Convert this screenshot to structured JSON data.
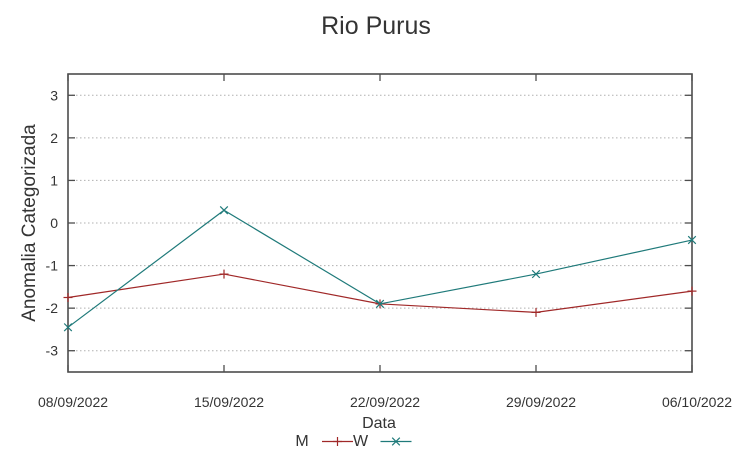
{
  "chart_data": {
    "type": "line",
    "title": "Rio Purus",
    "xlabel": "Data",
    "ylabel": "Anomalia Categorizada",
    "categories": [
      "08/09/2022",
      "15/09/2022",
      "22/09/2022",
      "29/09/2022",
      "06/10/2022"
    ],
    "series": [
      {
        "name": "M",
        "color": "#a02828",
        "marker": "plus",
        "values": [
          -1.75,
          -1.2,
          -1.9,
          -2.1,
          -1.6
        ]
      },
      {
        "name": "W",
        "color": "#1f7a7a",
        "marker": "cross",
        "values": [
          -2.45,
          0.3,
          -1.9,
          -1.2,
          -0.4
        ]
      }
    ],
    "yticks": [
      -3,
      -2,
      -1,
      0,
      1,
      2,
      3
    ],
    "ylim": [
      -3.5,
      3.5
    ],
    "grid": "horizontal-dotted",
    "legend_position": "bottom-center",
    "colors": {
      "grid": "#b0b0b0",
      "axis": "#4d4d4d",
      "text": "#343434",
      "background": "#ffffff"
    }
  }
}
